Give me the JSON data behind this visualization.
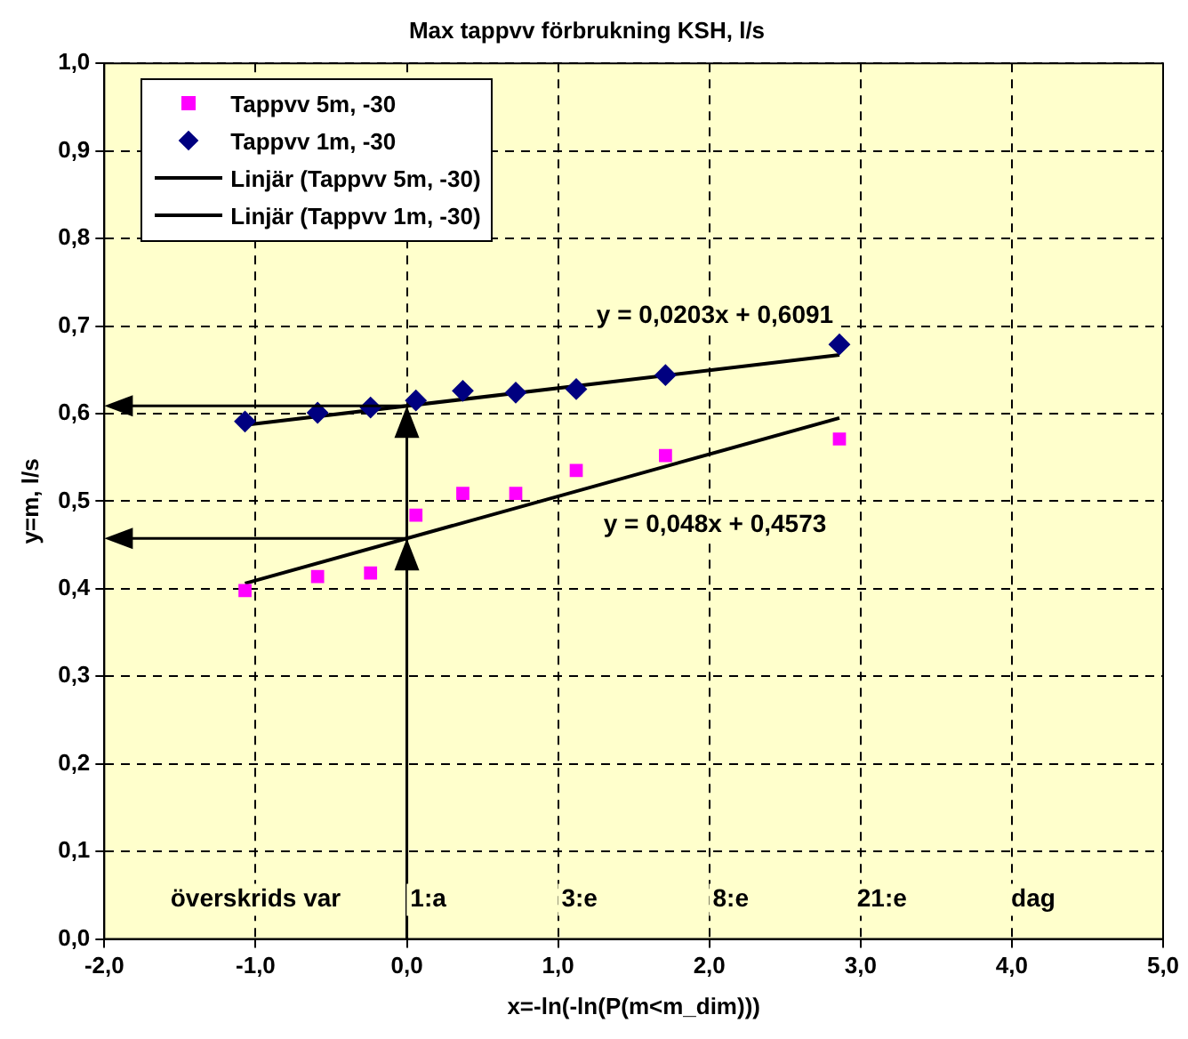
{
  "chart_data": {
    "type": "scatter",
    "title": "Max tappvv förbrukning KSH, l/s",
    "xlabel": "x=-ln(-ln(P(m<m_dim)))",
    "ylabel": "y=m, l/s",
    "xlim": [
      -2,
      5
    ],
    "xticks": [
      {
        "value": -2,
        "label": "-2,0"
      },
      {
        "value": -1,
        "label": "-1,0"
      },
      {
        "value": 0,
        "label": "0,0"
      },
      {
        "value": 1,
        "label": "1,0"
      },
      {
        "value": 2,
        "label": "2,0"
      },
      {
        "value": 3,
        "label": "3,0"
      },
      {
        "value": 4,
        "label": "4,0"
      },
      {
        "value": 5,
        "label": "5,0"
      }
    ],
    "ylim": [
      0,
      1
    ],
    "yticks": [
      {
        "value": 0,
        "label": "0,0"
      },
      {
        "value": 0.1,
        "label": "0,1"
      },
      {
        "value": 0.2,
        "label": "0,2"
      },
      {
        "value": 0.3,
        "label": "0,3"
      },
      {
        "value": 0.4,
        "label": "0,4"
      },
      {
        "value": 0.5,
        "label": "0,5"
      },
      {
        "value": 0.6,
        "label": "0,6"
      },
      {
        "value": 0.7,
        "label": "0,7"
      },
      {
        "value": 0.8,
        "label": "0,8"
      },
      {
        "value": 0.9,
        "label": "0,9"
      },
      {
        "value": 1,
        "label": "1,0"
      }
    ],
    "grid": true,
    "legend": "top left",
    "series": [
      {
        "name": "Tappvv 5m, -30",
        "type": "scatter",
        "marker": "square",
        "color": "#ff00ff",
        "x": [
          -1.07,
          -0.59,
          -0.24,
          0.06,
          0.37,
          0.72,
          1.12,
          1.71,
          2.86
        ],
        "values": [
          0.398,
          0.414,
          0.418,
          0.484,
          0.509,
          0.509,
          0.535,
          0.552,
          0.571
        ]
      },
      {
        "name": "Tappvv 1m, -30",
        "type": "scatter",
        "marker": "diamond",
        "color": "#000080",
        "x": [
          -1.07,
          -0.59,
          -0.24,
          0.06,
          0.37,
          0.72,
          1.12,
          1.71,
          2.86
        ],
        "values": [
          0.591,
          0.601,
          0.607,
          0.615,
          0.626,
          0.624,
          0.628,
          0.644,
          0.679
        ]
      },
      {
        "name": "Linjär (Tappvv 5m, -30)",
        "type": "line",
        "marker": "none",
        "color": "#000000",
        "x": [
          -1.07,
          2.86
        ],
        "values": [
          0.406,
          0.595
        ]
      },
      {
        "name": "Linjär (Tappvv 1m, -30)",
        "type": "line",
        "marker": "none",
        "color": "#000000",
        "x": [
          -1.07,
          2.86
        ],
        "values": [
          0.587,
          0.667
        ]
      }
    ],
    "annotations": [
      "y = 0,0203x + 0,6091",
      "y = 0,048x + 0,4573",
      "överskrids var",
      "1:a",
      "3:e",
      "8:e",
      "21:e",
      "dag"
    ]
  }
}
